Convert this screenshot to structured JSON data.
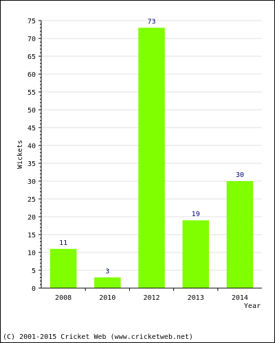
{
  "chart_data": {
    "type": "bar",
    "categories": [
      "2008",
      "2010",
      "2012",
      "2013",
      "2014"
    ],
    "values": [
      11,
      3,
      73,
      19,
      30
    ],
    "xlabel": "Year",
    "ylabel": "Wickets",
    "ylim": [
      0,
      75
    ],
    "yticks": [
      0,
      5,
      10,
      15,
      20,
      25,
      30,
      35,
      40,
      45,
      50,
      55,
      60,
      65,
      70,
      75
    ],
    "grid": true,
    "data_labels": true,
    "bar_color": "#7fff00",
    "label_color": "#000080"
  },
  "footer": {
    "copyright": "(C) 2001-2015 Cricket Web (www.cricketweb.net)"
  }
}
